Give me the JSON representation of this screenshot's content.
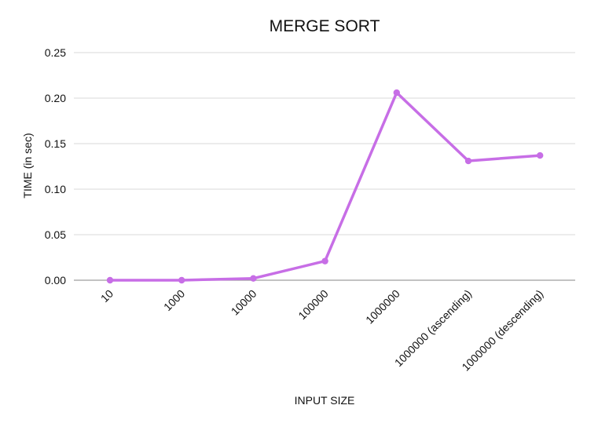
{
  "chart_data": {
    "type": "line",
    "title": "MERGE SORT",
    "xlabel": "INPUT SIZE",
    "ylabel": "TIME (in sec)",
    "categories": [
      "10",
      "1000",
      "10000",
      "100000",
      "1000000",
      "1000000 (ascending)",
      "1000000 (descending)"
    ],
    "series": [
      {
        "values": [
          0.0,
          0.0,
          0.002,
          0.021,
          0.206,
          0.131,
          0.137
        ]
      }
    ],
    "ylim": [
      0,
      0.25
    ],
    "yticks": [
      "0.00",
      "0.05",
      "0.10",
      "0.15",
      "0.20",
      "0.25"
    ],
    "grid": true,
    "legend": "none",
    "colors": {
      "line": "#c76ee6",
      "grid": "#d9d9d9",
      "axis": "#9e9e9e",
      "text": "#111111"
    }
  }
}
